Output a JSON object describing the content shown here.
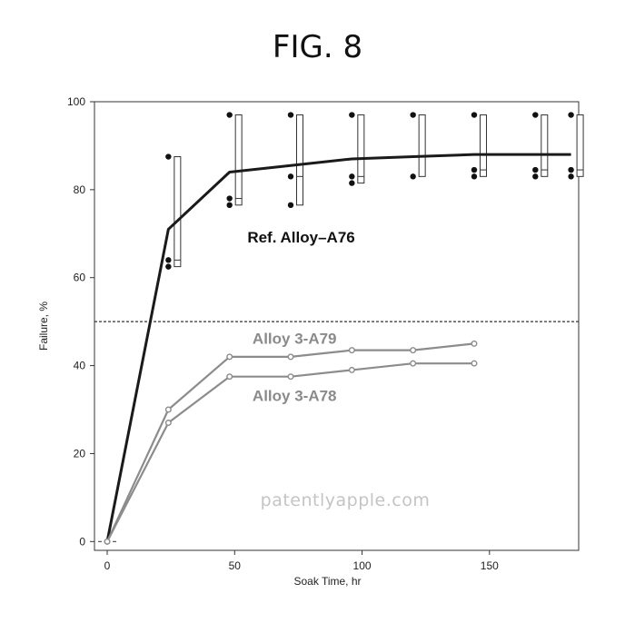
{
  "figure_title": "FIG. 8",
  "watermark": "patentlyapple.com",
  "chart_data": {
    "type": "line",
    "title": "",
    "xlabel": "Soak Time, hr",
    "ylabel": "Failure, %",
    "xlim": [
      -5,
      185
    ],
    "ylim": [
      -2,
      100
    ],
    "xticks": [
      0,
      50,
      100,
      150
    ],
    "yticks": [
      0,
      20,
      40,
      60,
      80,
      100
    ],
    "reference_line_y": 50,
    "series": [
      {
        "name": "Ref. Alloy–A76",
        "color": "#1a1a1a",
        "x": [
          0,
          24,
          48,
          72,
          96,
          120,
          144,
          168,
          182
        ],
        "y": [
          0,
          71,
          84,
          85.5,
          87,
          87.5,
          88,
          88,
          88
        ]
      },
      {
        "name": "Alloy 3-A79",
        "color": "#8c8c8c",
        "x": [
          0,
          24,
          48,
          72,
          96,
          120,
          144
        ],
        "y": [
          0,
          30,
          42,
          42,
          43.5,
          43.5,
          45
        ]
      },
      {
        "name": "Alloy 3-A78",
        "color": "#8c8c8c",
        "x": [
          0,
          24,
          48,
          72,
          96,
          120,
          144
        ],
        "y": [
          0,
          27,
          37.5,
          37.5,
          39,
          40.5,
          40.5
        ]
      }
    ],
    "scatter_points": [
      {
        "x": 24,
        "y": 87.5
      },
      {
        "x": 24,
        "y": 64
      },
      {
        "x": 24,
        "y": 62.5
      },
      {
        "x": 48,
        "y": 97
      },
      {
        "x": 48,
        "y": 78
      },
      {
        "x": 48,
        "y": 76.5
      },
      {
        "x": 72,
        "y": 97
      },
      {
        "x": 72,
        "y": 83
      },
      {
        "x": 72,
        "y": 76.5
      },
      {
        "x": 96,
        "y": 97
      },
      {
        "x": 96,
        "y": 83
      },
      {
        "x": 96,
        "y": 81.5
      },
      {
        "x": 120,
        "y": 97
      },
      {
        "x": 120,
        "y": 83
      },
      {
        "x": 144,
        "y": 97
      },
      {
        "x": 144,
        "y": 84.5
      },
      {
        "x": 144,
        "y": 83
      },
      {
        "x": 168,
        "y": 97
      },
      {
        "x": 168,
        "y": 84.5
      },
      {
        "x": 168,
        "y": 83
      },
      {
        "x": 182,
        "y": 97
      },
      {
        "x": 182,
        "y": 84.5
      },
      {
        "x": 182,
        "y": 83
      }
    ],
    "ranges": [
      {
        "x": 24,
        "low": 62.5,
        "high": 87.5,
        "mid": 64
      },
      {
        "x": 48,
        "low": 76.5,
        "high": 97,
        "mid": 78
      },
      {
        "x": 72,
        "low": 76.5,
        "high": 97,
        "mid": 83
      },
      {
        "x": 96,
        "low": 81.5,
        "high": 97,
        "mid": 83
      },
      {
        "x": 120,
        "low": 83,
        "high": 97,
        "mid": 87.5
      },
      {
        "x": 144,
        "low": 83,
        "high": 97,
        "mid": 84.5
      },
      {
        "x": 168,
        "low": 83,
        "high": 97,
        "mid": 84.5
      },
      {
        "x": 182,
        "low": 83,
        "high": 97,
        "mid": 84.5
      }
    ],
    "annotations": [
      {
        "text": "Ref. Alloy–A76",
        "x": 55,
        "y": 68,
        "style": "dark"
      },
      {
        "text": "Alloy 3-A79",
        "x": 57,
        "y": 45,
        "style": "gray"
      },
      {
        "text": "Alloy 3-A78",
        "x": 57,
        "y": 32,
        "style": "gray"
      }
    ],
    "grid": false
  }
}
